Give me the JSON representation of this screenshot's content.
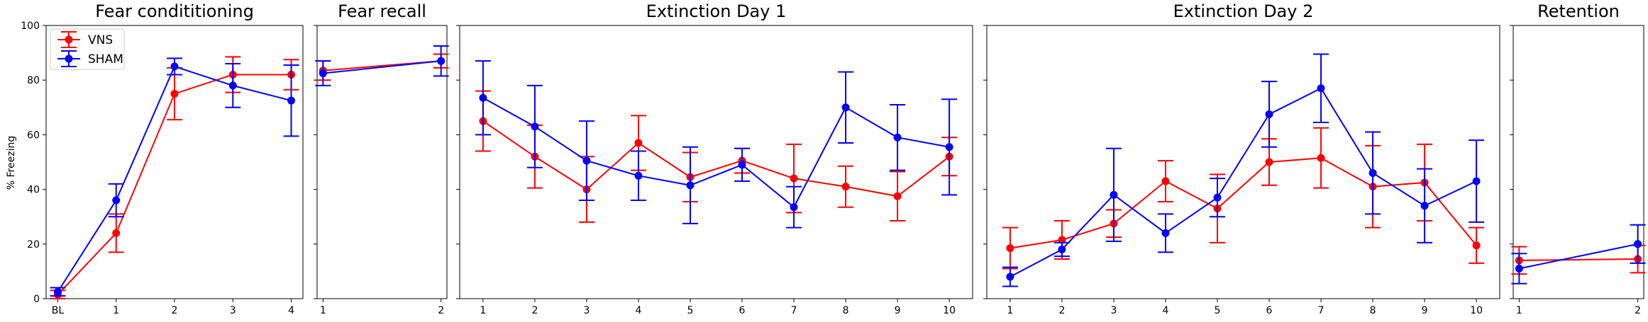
{
  "chart_data": {
    "type": "line",
    "ylabel": "% Freezing",
    "ylim": [
      0,
      100
    ],
    "yticks": [
      0,
      20,
      40,
      60,
      80,
      100
    ],
    "legend": {
      "placement": "top-left",
      "entries": [
        "VNS",
        "SHAM"
      ]
    },
    "colors": {
      "VNS": "#ff0000",
      "SHAM": "#0000ff"
    },
    "panels": [
      {
        "title": "Fear condititioning",
        "categories": [
          "BL",
          "1",
          "2",
          "3",
          "4"
        ],
        "series": [
          {
            "name": "VNS",
            "values": [
              1.5,
              24,
              75,
              82,
              82
            ],
            "errors": [
              1.5,
              7,
              9.5,
              6.5,
              5.5
            ]
          },
          {
            "name": "SHAM",
            "values": [
              2.5,
              36,
              85,
              78,
              72.5
            ],
            "errors": [
              1.5,
              6,
              3,
              8,
              13
            ]
          }
        ]
      },
      {
        "title": "Fear recall",
        "categories": [
          "1",
          "2"
        ],
        "series": [
          {
            "name": "VNS",
            "values": [
              83.5,
              87
            ],
            "errors": [
              3.5,
              2.5
            ]
          },
          {
            "name": "SHAM",
            "values": [
              82.5,
              87
            ],
            "errors": [
              4.5,
              5.5
            ]
          }
        ]
      },
      {
        "title": "Extinction Day 1",
        "categories": [
          "1",
          "2",
          "3",
          "4",
          "5",
          "6",
          "7",
          "8",
          "9",
          "10"
        ],
        "series": [
          {
            "name": "VNS",
            "values": [
              65,
              52,
              40,
              57,
              44.5,
              50.5,
              44,
              41,
              37.5,
              52
            ],
            "errors": [
              11,
              11.5,
              12,
              10,
              9,
              4.5,
              12.5,
              7.5,
              9,
              7
            ]
          },
          {
            "name": "SHAM",
            "values": [
              73.5,
              63,
              50.5,
              45,
              41.5,
              49,
              33.5,
              70,
              59,
              55.5
            ],
            "errors": [
              13.5,
              15,
              14.5,
              9,
              14,
              6,
              7.5,
              13,
              12,
              17.5
            ]
          }
        ]
      },
      {
        "title": "Extinction Day 2",
        "categories": [
          "1",
          "2",
          "3",
          "4",
          "5",
          "6",
          "7",
          "8",
          "9",
          "10"
        ],
        "series": [
          {
            "name": "VNS",
            "values": [
              18.5,
              21.5,
              27.5,
              43,
              33,
              50,
              51.5,
              41,
              42.5,
              19.5
            ],
            "errors": [
              7.5,
              7,
              5,
              7.5,
              12.5,
              8.5,
              11,
              15,
              14,
              6.5
            ]
          },
          {
            "name": "SHAM",
            "values": [
              8,
              18,
              38,
              24,
              37,
              67.5,
              77,
              46,
              34,
              43
            ],
            "errors": [
              3.5,
              2.5,
              17,
              7,
              7,
              12,
              12.5,
              15,
              13.5,
              15
            ]
          }
        ]
      },
      {
        "title": "Retention",
        "categories": [
          "1",
          "2"
        ],
        "series": [
          {
            "name": "VNS",
            "values": [
              14,
              14.5
            ],
            "errors": [
              5,
              5
            ]
          },
          {
            "name": "SHAM",
            "values": [
              11,
              20
            ],
            "errors": [
              5.5,
              7
            ]
          }
        ]
      }
    ]
  }
}
